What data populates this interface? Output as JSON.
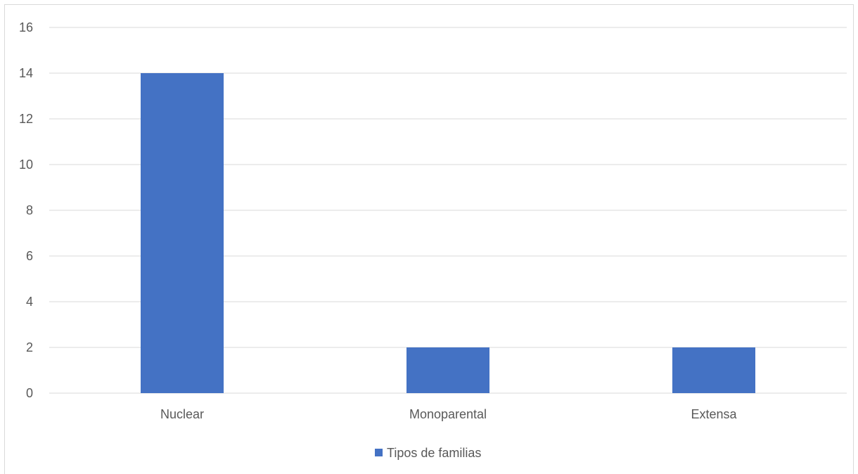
{
  "chart_data": {
    "type": "bar",
    "categories": [
      "Nuclear",
      "Monoparental",
      "Extensa"
    ],
    "series": [
      {
        "name": "Tipos de familias",
        "values": [
          14,
          2,
          2
        ],
        "color": "#4472c4"
      }
    ],
    "ylim": [
      0,
      16
    ],
    "yticks": [
      0,
      2,
      4,
      6,
      8,
      10,
      12,
      14,
      16
    ],
    "grid": true,
    "legend_position": "bottom"
  }
}
